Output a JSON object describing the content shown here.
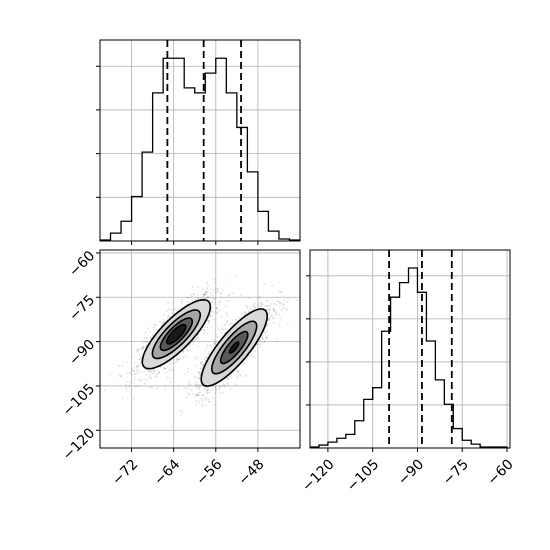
{
  "chart_data": [
    {
      "type": "histogram",
      "panel": "top-left",
      "variable": "x",
      "xlim": [
        -78,
        -40
      ],
      "grid": true,
      "bin_edges": [
        -78,
        -76,
        -74,
        -72,
        -70,
        -68,
        -66,
        -64,
        -62,
        -60,
        -58,
        -56,
        -54,
        -52,
        -50,
        -48,
        -46,
        -44,
        -42,
        -40
      ],
      "counts": [
        1,
        8,
        20,
        45,
        90,
        150,
        185,
        185,
        155,
        150,
        170,
        185,
        150,
        115,
        70,
        30,
        10,
        2,
        1
      ],
      "quantiles": [
        -65.2,
        -58.3,
        -51.2
      ],
      "yticks_shown": false
    },
    {
      "type": "histogram",
      "panel": "bottom-right",
      "variable": "y",
      "xlim": [
        -126,
        -59
      ],
      "grid": true,
      "bin_edges": [
        -126,
        -123,
        -120,
        -117,
        -114,
        -111,
        -108,
        -105,
        -102,
        -99,
        -96,
        -93,
        -90,
        -87,
        -84,
        -81,
        -78,
        -75,
        -72,
        -69,
        -66,
        -63,
        -60
      ],
      "counts": [
        1,
        3,
        6,
        10,
        14,
        28,
        50,
        62,
        120,
        155,
        170,
        185,
        160,
        110,
        70,
        45,
        20,
        8,
        4,
        1,
        1,
        1
      ],
      "xticks": [
        -120,
        -105,
        -90,
        -75,
        -60
      ],
      "quantiles": [
        -99.5,
        -88.5,
        -78.5
      ],
      "yticks_shown": false
    },
    {
      "type": "contour_scatter",
      "panel": "bottom-left",
      "xvar": "x",
      "yvar": "y",
      "xlim": [
        -78,
        -40
      ],
      "ylim": [
        -126,
        -59
      ],
      "grid": true,
      "xticks": [
        -72,
        -64,
        -56,
        -48
      ],
      "yticks": [
        -60,
        -75,
        -90,
        -105,
        -120
      ],
      "clusters": [
        {
          "mean": [
            -63.5,
            -87.5
          ],
          "sx": 3.6,
          "sy": 6.5,
          "rho": 0.8,
          "weight": 0.5
        },
        {
          "mean": [
            -52.5,
            -92.0
          ],
          "sx": 3.6,
          "sy": 7.5,
          "rho": 0.82,
          "weight": 0.5
        }
      ]
    }
  ]
}
